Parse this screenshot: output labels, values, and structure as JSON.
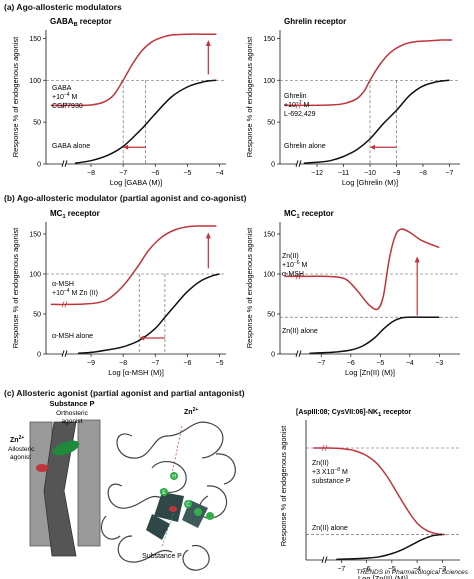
{
  "sections": {
    "a": "(a) Ago-allosteric modulators",
    "b": "(b) Ago-allosteric modulator (partial agonist and co-agonist)",
    "c": "(c) Allosteric agonist (partial agonist and partial antagonist)"
  },
  "colors": {
    "red": "#c0343c",
    "black": "#111111",
    "grey": "#555555"
  },
  "ylabel": "Response % of endogenous agonist",
  "footer": "TRENDS in Pharmacological Sciences",
  "chart_data": [
    {
      "type": "line",
      "id": "gaba",
      "title_main": "GABA",
      "title_sub": "B",
      "title_rest": " receptor",
      "xlabel": "Log [GABA (M)]",
      "ylim": [
        0,
        160
      ],
      "xlim": [
        -9.4,
        -3.8
      ],
      "xticks": [
        -8,
        -7,
        -6,
        -5,
        -4
      ],
      "yticks": [
        0,
        50,
        100,
        150
      ],
      "ref_line": 100,
      "series": [
        {
          "role": "modulated",
          "color": "#c0343c",
          "x": [
            -9.25,
            -8.5,
            -8,
            -7.6,
            -7.3,
            -7.0,
            -6.7,
            -6.4,
            -6.1,
            -5.8,
            -5.5,
            -5.0,
            -4.6,
            -4.1
          ],
          "y": [
            70,
            70,
            70.5,
            74,
            82,
            100,
            120,
            136,
            146,
            151,
            154,
            155,
            155,
            155
          ],
          "label": [
            "GABA",
            "+10",
            "−4",
            " M",
            "CGP7930"
          ]
        },
        {
          "role": "alone",
          "color": "#111111",
          "x": [
            -8.5,
            -8.0,
            -7.5,
            -7.0,
            -6.5,
            -6.3,
            -6.0,
            -5.5,
            -5.0,
            -4.5,
            -4.1
          ],
          "y": [
            1,
            4,
            10,
            21,
            39,
            47,
            60,
            80,
            92,
            98,
            100
          ],
          "label": "GABA alone"
        }
      ],
      "ec50_lines": [
        -7.0,
        -6.3
      ],
      "shift_arrow": {
        "from": -6.3,
        "to": -7.0,
        "y": 20
      },
      "up_arrow": {
        "x": -4.35,
        "from": 107,
        "to": 148
      }
    },
    {
      "type": "line",
      "id": "ghrelin",
      "title_main": "Ghrelin receptor",
      "xlabel": "Log [Ghrelin (M)]",
      "ylim": [
        0,
        160
      ],
      "xlim": [
        -13.4,
        -6.6
      ],
      "xticks": [
        -12,
        -11,
        -10,
        -9,
        -8,
        -7
      ],
      "yticks": [
        0,
        50,
        100,
        150
      ],
      "ref_line": 100,
      "series": [
        {
          "role": "modulated",
          "color": "#c0343c",
          "x": [
            -13.25,
            -12.5,
            -11.5,
            -11,
            -10.5,
            -10.2,
            -10.0,
            -9.6,
            -9.2,
            -8.7,
            -8.3,
            -7.8,
            -7.3,
            -6.9
          ],
          "y": [
            70,
            70,
            70.5,
            72,
            78,
            88,
            100,
            120,
            134,
            143,
            146,
            147,
            148,
            148
          ],
          "label": [
            "Ghrelin",
            "+10",
            "−7",
            " M",
            "L-692,429"
          ]
        },
        {
          "role": "alone",
          "color": "#111111",
          "x": [
            -12.5,
            -12,
            -11.5,
            -11,
            -10.5,
            -10,
            -9.5,
            -9.0,
            -8.5,
            -8.0,
            -7.5,
            -7.0
          ],
          "y": [
            1,
            2,
            4,
            9,
            17,
            30,
            48,
            64,
            82,
            93,
            98,
            100
          ],
          "label": "Ghrelin alone"
        }
      ],
      "ec50_lines": [
        -10.0,
        -9.0
      ],
      "shift_arrow": {
        "from": -9.0,
        "to": -10.0,
        "y": 20
      },
      "up_arrow": null
    },
    {
      "type": "line",
      "id": "mc1a",
      "title_main": "MC",
      "title_sub": "1",
      "title_rest": " receptor",
      "xlabel": "Log [α-MSH (M)]",
      "ylim": [
        0,
        165
      ],
      "xlim": [
        -10.4,
        -4.8
      ],
      "xticks": [
        -9,
        -8,
        -7,
        -6,
        -5
      ],
      "yticks": [
        0,
        50,
        100,
        150
      ],
      "ref_line": 100,
      "series": [
        {
          "role": "modulated",
          "color": "#c0343c",
          "x": [
            -10.25,
            -9.7,
            -9.2,
            -8.8,
            -8.5,
            -8.2,
            -7.9,
            -7.5,
            -7.2,
            -6.8,
            -6.4,
            -6.0,
            -5.6,
            -5.1
          ],
          "y": [
            62,
            62,
            62.5,
            64,
            68,
            77,
            90,
            112,
            130,
            146,
            155,
            159,
            160,
            160
          ],
          "label": [
            "α-MSH",
            "+10",
            "−4",
            " M Zn (II)"
          ]
        },
        {
          "role": "alone",
          "color": "#111111",
          "x": [
            -9.4,
            -9.0,
            -8.5,
            -8.0,
            -7.5,
            -7.0,
            -6.7,
            -6.4,
            -6.0,
            -5.6,
            -5.2,
            -5.0
          ],
          "y": [
            1,
            2,
            5,
            9,
            17,
            32,
            46,
            60,
            78,
            91,
            98,
            100
          ],
          "label": "α-MSH alone"
        }
      ],
      "ec50_lines": [
        -7.5,
        -6.7
      ],
      "shift_arrow": {
        "from": -6.7,
        "to": -7.5,
        "y": 20
      },
      "up_arrow": {
        "x": -5.35,
        "from": 107,
        "to": 152
      }
    },
    {
      "type": "line",
      "id": "mc1b",
      "title_main": "MC",
      "title_sub": "1",
      "title_rest": " receptor",
      "xlabel": "Log [Zn(II) (M)]",
      "ylim": [
        0,
        165
      ],
      "xlim": [
        -8.4,
        -2.3
      ],
      "xticks": [
        -7,
        -6,
        -5,
        -4,
        -3
      ],
      "yticks": [
        0,
        50,
        100,
        150
      ],
      "ref_line": 100,
      "ref_line2": 46,
      "series": [
        {
          "role": "modulated",
          "color": "#c0343c",
          "x": [
            -8.25,
            -7.5,
            -6.8,
            -6.2,
            -5.8,
            -5.4,
            -5.1,
            -4.9,
            -4.7,
            -4.5,
            -4.3,
            -4.0,
            -3.6,
            -3.0
          ],
          "y": [
            97,
            97,
            97,
            94,
            80,
            62,
            56,
            72,
            118,
            147,
            156,
            152,
            142,
            133
          ],
          "label": [
            "Zn(II)",
            "+10",
            "−6",
            " M",
            "α-MSH"
          ]
        },
        {
          "role": "alone",
          "color": "#111111",
          "x": [
            -7.4,
            -7.0,
            -6.5,
            -6.0,
            -5.6,
            -5.2,
            -4.9,
            -4.6,
            -4.3,
            -4.0,
            -3.6,
            -3.0
          ],
          "y": [
            1,
            1.5,
            2.5,
            5,
            10,
            20,
            31,
            40,
            45,
            46,
            46,
            46
          ],
          "label": "Zn(II) alone"
        }
      ],
      "ec50_lines": [],
      "shift_arrow": null,
      "up_arrow": {
        "x": -3.75,
        "from": 48,
        "to": 122
      }
    },
    {
      "type": "line",
      "id": "nk1",
      "title_main": "[AspIII:08; CysVII:06]-NK",
      "title_sub": "1",
      "title_rest": " receptor",
      "xlabel": "Log [Zn(II) (M)]",
      "ylim": [
        0,
        110
      ],
      "xlim": [
        -8.4,
        -2.3
      ],
      "xticks": [
        -7,
        -6,
        -5,
        -4,
        -3
      ],
      "yticks": [],
      "ref_line": 88,
      "ref_line2": 20,
      "series": [
        {
          "role": "modulated",
          "color": "#c0343c",
          "x": [
            -8.1,
            -7.5,
            -7.0,
            -6.5,
            -6.0,
            -5.6,
            -5.2,
            -4.8,
            -4.4,
            -4.0,
            -3.6,
            -3.2,
            -2.9
          ],
          "y": [
            88,
            88,
            87.5,
            86,
            82,
            76,
            66,
            53,
            40,
            29,
            23,
            20.5,
            20
          ],
          "label": [
            "Zn(II)",
            "+3 X10",
            "−8",
            " M",
            "substance P"
          ]
        },
        {
          "role": "alone",
          "color": "#111111",
          "x": [
            -7.2,
            -6.5,
            -6.0,
            -5.5,
            -5.0,
            -4.6,
            -4.2,
            -3.8,
            -3.4,
            -3.0
          ],
          "y": [
            0.5,
            1,
            1.5,
            2.5,
            5,
            8,
            12,
            16,
            19,
            20
          ],
          "label": "Zn(II) alone"
        }
      ],
      "ec50_lines": [],
      "shift_arrow": null,
      "up_arrow": null
    }
  ],
  "diagram": {
    "substance_p": "Substance P",
    "orthosteric": "Orthosteric",
    "agonist": "agonist",
    "zn": "Zn",
    "zn_sup": "2+",
    "allosteric": "Allosteric",
    "allosteric_agonist": "agonist",
    "substance_p2": "Substance P",
    "zn2": "Zn",
    "zn2_sup": "2+",
    "h_label": "H",
    "e_label": "E",
    "c_label": "C"
  }
}
